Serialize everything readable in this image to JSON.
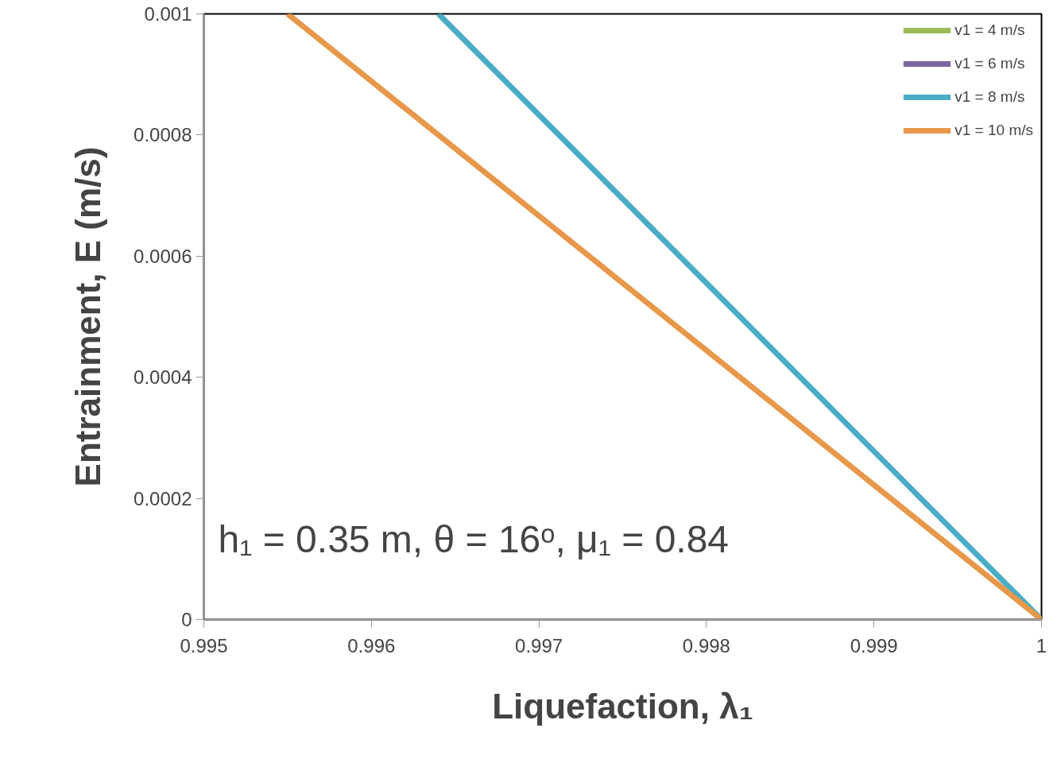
{
  "chart_data": {
    "type": "line",
    "xlabel": "Liquefaction, λ₁",
    "ylabel": "Entrainment, E (m/s)",
    "x": [
      0.9955,
      1
    ],
    "series": [
      {
        "name": "v1 = 4 m/s",
        "color": "#9bbb59",
        "values": [
          null,
          null
        ]
      },
      {
        "name": "v1 = 6 m/s",
        "color": "#8064a2",
        "values": [
          null,
          null
        ]
      },
      {
        "name": "v1 = 8 m/s",
        "color": "#4bacc6",
        "x": [
          0.9964,
          1
        ],
        "values": [
          0.001,
          0
        ]
      },
      {
        "name": "v1 = 10 m/s",
        "color": "#e8984a",
        "values": [
          0.001,
          0
        ]
      }
    ],
    "xlim": [
      0.995,
      1
    ],
    "xticks": [
      0.995,
      0.996,
      0.997,
      0.998,
      0.999,
      1
    ],
    "ylim": [
      0,
      0.001
    ],
    "yticks": [
      0,
      0.0002,
      0.0004,
      0.0006,
      0.0008,
      0.001
    ],
    "grid": false,
    "legend": "top right",
    "line_style": "solid",
    "marker": "none",
    "annotations": [
      "h₁ = 0.35 m, θ = 16ᵒ, μ₁ = 0.84"
    ]
  }
}
